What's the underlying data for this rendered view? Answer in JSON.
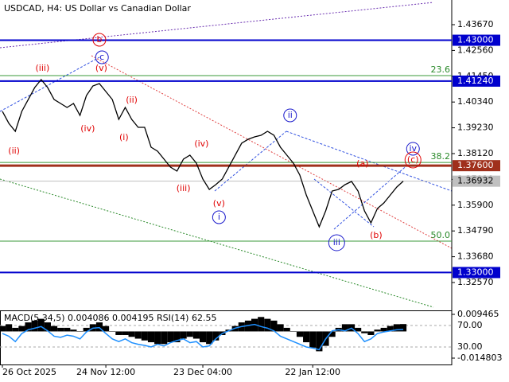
{
  "chart_data": [
    {
      "type": "line",
      "title": "USDCAD, H4:  US Dollar vs Canadian Dollar",
      "categories": [
        "26 Oct 2025",
        null,
        null,
        null,
        null,
        null,
        null,
        null,
        null,
        null,
        null,
        null,
        null,
        null,
        null,
        null,
        "24 Nov 12:00",
        null,
        null,
        null,
        null,
        null,
        null,
        null,
        null,
        null,
        null,
        null,
        null,
        null,
        null,
        "23 Dec 04:00",
        null,
        null,
        null,
        null,
        null,
        null,
        null,
        null,
        null,
        null,
        null,
        null,
        null,
        null,
        null,
        null,
        "22 Jan 12:00",
        null,
        null,
        null,
        null,
        null,
        null,
        null,
        null,
        null,
        null,
        null,
        null,
        null,
        null
      ],
      "series": [
        {
          "name": "USDCAD",
          "color": "#000000",
          "values": [
            1.39936,
            1.39422,
            1.39079,
            1.39936,
            1.40449,
            1.40963,
            1.41306,
            1.40963,
            1.40449,
            1.40278,
            1.40107,
            1.40278,
            1.39764,
            1.40621,
            1.41032,
            1.41135,
            1.40792,
            1.40449,
            1.39593,
            1.40107,
            1.39593,
            1.3925,
            1.3925,
            1.38394,
            1.38223,
            1.3788,
            1.37537,
            1.37366,
            1.3788,
            1.38051,
            1.37709,
            1.37023,
            1.36578,
            1.36784,
            1.37023,
            1.37537,
            1.38051,
            1.38565,
            1.38736,
            1.38839,
            1.38908,
            1.39079,
            1.38908,
            1.38394,
            1.38051,
            1.37709,
            1.37195,
            1.36338,
            1.35653,
            1.34968,
            1.35653,
            1.3651,
            1.36578,
            1.36784,
            1.36921,
            1.3651,
            1.35653,
            1.35139,
            1.35756,
            1.35996,
            1.36338,
            1.36681,
            1.36932
          ]
        }
      ],
      "ylim": [
        1.31439,
        1.44732
      ],
      "yticks": [
        {
          "value": 1.4367,
          "label": "1.43670"
        },
        {
          "value": 1.4256,
          "label": "1.42560"
        },
        {
          "value": 1.4145,
          "label": "1.41450"
        },
        {
          "value": 1.4034,
          "label": "1.40340"
        },
        {
          "value": 1.3923,
          "label": "1.39230"
        },
        {
          "value": 1.3812,
          "label": "1.38120"
        },
        {
          "value": 1.3701,
          "label": "1.37010"
        },
        {
          "value": 1.359,
          "label": "1.35900"
        },
        {
          "value": 1.3479,
          "label": "1.34790"
        },
        {
          "value": 1.3368,
          "label": "1.33680"
        },
        {
          "value": 1.3257,
          "label": "1.32570"
        }
      ],
      "levels": [
        {
          "value": 1.43,
          "label": "1.43000",
          "color": "#0000cd"
        },
        {
          "value": 1.4124,
          "label": "1.41240",
          "color": "#0000cd"
        },
        {
          "value": 1.376,
          "label": "1.37600",
          "color": "#a0301c"
        },
        {
          "value": 1.36932,
          "label": "1.36932",
          "color": "#c0c0c0"
        },
        {
          "value": 1.33,
          "label": "1.33000",
          "color": "#0000cd"
        }
      ],
      "fib_levels": [
        {
          "value": 1.41477,
          "label": "23.6"
        },
        {
          "value": 1.3774,
          "label": "38.2"
        },
        {
          "value": 1.34351,
          "label": "50.0"
        }
      ],
      "annotations": [
        {
          "text": "(ii)",
          "x": 1.8,
          "y": 1.38223,
          "color": "#e00000",
          "circle": false
        },
        {
          "text": "(iii)",
          "x": 6.2,
          "y": 1.41786,
          "color": "#e00000",
          "circle": false
        },
        {
          "text": "(iv)",
          "x": 13.2,
          "y": 1.39182,
          "color": "#e00000",
          "circle": false
        },
        {
          "text": "(v)",
          "x": 15.3,
          "y": 1.41786,
          "color": "#e00000",
          "circle": false
        },
        {
          "text": "c",
          "x": 15.4,
          "y": 1.42265,
          "color": "#1a1acc",
          "circle": true
        },
        {
          "text": "b",
          "x": 15.0,
          "y": 1.43019,
          "color": "#e00000",
          "circle": true
        },
        {
          "text": "(i)",
          "x": 18.8,
          "y": 1.38805,
          "color": "#e00000",
          "circle": false
        },
        {
          "text": "(ii)",
          "x": 20.0,
          "y": 1.40415,
          "color": "#e00000",
          "circle": false
        },
        {
          "text": "(iii)",
          "x": 28.0,
          "y": 1.36612,
          "color": "#e00000",
          "circle": false
        },
        {
          "text": "(iv)",
          "x": 30.8,
          "y": 1.38531,
          "color": "#e00000",
          "circle": false
        },
        {
          "text": "(v)",
          "x": 33.5,
          "y": 1.35961,
          "color": "#e00000",
          "circle": false
        },
        {
          "text": "i",
          "x": 33.5,
          "y": 1.35379,
          "color": "#1a1acc",
          "circle": true
        },
        {
          "text": "ii",
          "x": 44.5,
          "y": 1.39764,
          "color": "#1a1acc",
          "circle": true
        },
        {
          "text": "iii",
          "x": 51.7,
          "y": 1.34283,
          "color": "#1a1acc",
          "circle": true
        },
        {
          "text": "(a)",
          "x": 55.7,
          "y": 1.37674,
          "color": "#e00000",
          "circle": false
        },
        {
          "text": "(b)",
          "x": 57.8,
          "y": 1.34591,
          "color": "#e00000",
          "circle": false
        },
        {
          "text": "iv",
          "x": 63.5,
          "y": 1.38326,
          "color": "#1a1acc",
          "circle": true
        },
        {
          "text": "(c)",
          "x": 63.5,
          "y": 1.37846,
          "color": "#e00000",
          "circle": true
        }
      ]
    },
    {
      "type": "bar",
      "title": "MACD(5,34,5) 0.004086 0.004195 RSI(14) 62.55",
      "series": [
        {
          "name": "MACD",
          "color": "#000000",
          "values": [
            0.003,
            0.004,
            0.002,
            0.003,
            0.005,
            0.006,
            0.007,
            0.005,
            0.003,
            0.002,
            0.002,
            0.001,
            0.0,
            0.002,
            0.004,
            0.005,
            0.003,
            0.0,
            -0.002,
            -0.002,
            -0.003,
            -0.004,
            -0.005,
            -0.006,
            -0.007,
            -0.007,
            -0.006,
            -0.006,
            -0.004,
            -0.003,
            -0.004,
            -0.006,
            -0.007,
            -0.005,
            -0.002,
            0.001,
            0.003,
            0.005,
            0.006,
            0.007,
            0.008,
            0.007,
            0.006,
            0.004,
            0.002,
            0.0,
            -0.003,
            -0.006,
            -0.009,
            -0.011,
            -0.008,
            -0.003,
            0.002,
            0.004,
            0.004,
            0.002,
            -0.001,
            -0.002,
            0.001,
            0.002,
            0.003,
            0.004,
            0.004086
          ]
        },
        {
          "name": "RSI(14)",
          "color": "#1e90ff",
          "axis": "y2",
          "values": [
            55,
            50,
            40,
            55,
            62,
            65,
            68,
            60,
            50,
            48,
            52,
            50,
            45,
            58,
            65,
            66,
            55,
            45,
            40,
            45,
            38,
            35,
            33,
            30,
            35,
            32,
            38,
            42,
            45,
            38,
            40,
            30,
            32,
            45,
            55,
            60,
            65,
            68,
            70,
            72,
            68,
            65,
            60,
            50,
            45,
            40,
            35,
            30,
            28,
            25,
            45,
            60,
            62,
            60,
            65,
            55,
            40,
            45,
            55,
            58,
            60,
            62,
            62.55
          ]
        }
      ],
      "ylim": [
        -0.01833,
        0.01167
      ],
      "yticks": [
        0.009465,
        -0.014803
      ],
      "y2lim": [
        -2.6,
        98.1
      ],
      "y2ticks": [
        {
          "value": 70,
          "label": "70.00"
        },
        {
          "value": 30,
          "label": "30.00"
        }
      ]
    }
  ]
}
